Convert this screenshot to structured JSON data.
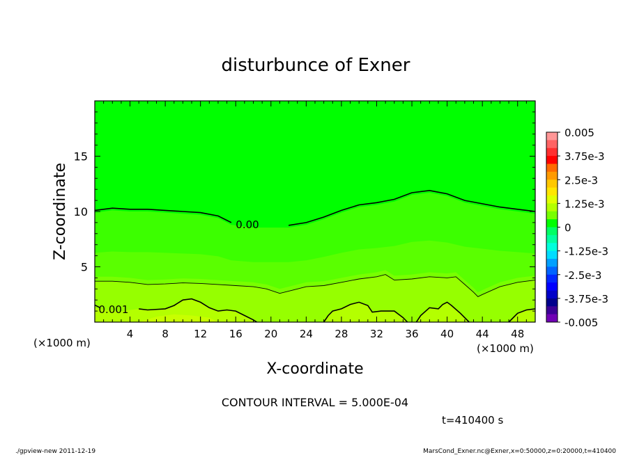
{
  "chart_data": {
    "type": "heatmap",
    "title": "disturbunce of Exner",
    "xlabel": "X-coordinate",
    "ylabel": "Z-coordinate",
    "x_unit": "(×1000 m)",
    "x_unit_right": "(×1000 m)",
    "xlim": [
      0,
      50
    ],
    "ylim": [
      0,
      20
    ],
    "x_ticks": [
      "4",
      "8",
      "12",
      "16",
      "20",
      "24",
      "28",
      "32",
      "36",
      "40",
      "44",
      "48"
    ],
    "x_tick_values": [
      4,
      8,
      12,
      16,
      20,
      24,
      28,
      32,
      36,
      40,
      44,
      48
    ],
    "y_ticks": [
      "5",
      "10",
      "15"
    ],
    "y_tick_values": [
      5,
      10,
      15
    ],
    "contour_interval_text": "CONTOUR INTERVAL = 5.000E-04",
    "time_text": "t=410400 s",
    "contour_labels": [
      {
        "text": "0.00",
        "x": 17.5,
        "y": 8.8
      },
      {
        "text": "0.001",
        "x": 2.3,
        "y": 1.2
      }
    ],
    "contour_zero": [
      [
        0,
        10.1
      ],
      [
        2,
        10.3
      ],
      [
        4,
        10.2
      ],
      [
        6,
        10.2
      ],
      [
        8,
        10.1
      ],
      [
        10,
        10
      ],
      [
        12,
        9.9
      ],
      [
        14,
        9.6
      ],
      [
        15.5,
        9.0
      ],
      [
        18,
        8.75
      ],
      [
        22,
        8.75
      ],
      [
        24,
        9.0
      ],
      [
        26,
        9.5
      ],
      [
        28,
        10.1
      ],
      [
        30,
        10.6
      ],
      [
        32,
        10.8
      ],
      [
        34,
        11.1
      ],
      [
        36,
        11.7
      ],
      [
        38,
        11.9
      ],
      [
        40,
        11.6
      ],
      [
        42,
        11.0
      ],
      [
        44,
        10.7
      ],
      [
        46,
        10.4
      ],
      [
        48,
        10.2
      ],
      [
        50,
        10.0
      ]
    ],
    "contour_0005": [
      [
        0,
        3.7
      ],
      [
        2,
        3.7
      ],
      [
        4,
        3.6
      ],
      [
        6,
        3.4
      ],
      [
        8,
        3.45
      ],
      [
        10,
        3.55
      ],
      [
        12,
        3.5
      ],
      [
        14,
        3.4
      ],
      [
        16,
        3.3
      ],
      [
        18,
        3.2
      ],
      [
        19.5,
        3.0
      ],
      [
        21,
        2.6
      ],
      [
        22.5,
        2.9
      ],
      [
        24,
        3.2
      ],
      [
        26,
        3.3
      ],
      [
        28,
        3.6
      ],
      [
        30,
        3.9
      ],
      [
        32,
        4.1
      ],
      [
        33,
        4.3
      ],
      [
        34,
        3.8
      ],
      [
        36,
        3.9
      ],
      [
        38,
        4.1
      ],
      [
        40,
        4.0
      ],
      [
        41,
        4.1
      ],
      [
        42,
        3.4
      ],
      [
        43,
        2.7
      ],
      [
        43.5,
        2.3
      ],
      [
        44,
        2.5
      ],
      [
        46,
        3.2
      ],
      [
        48,
        3.6
      ],
      [
        50,
        3.8
      ]
    ],
    "contour_001_segments": [
      [
        [
          0,
          1.3
        ],
        [
          1,
          1.1
        ],
        [
          3,
          1.0
        ],
        [
          5,
          1.2
        ],
        [
          6,
          1.1
        ],
        [
          8,
          1.2
        ],
        [
          9,
          1.5
        ],
        [
          10,
          2.0
        ],
        [
          11,
          2.1
        ],
        [
          12,
          1.8
        ],
        [
          13,
          1.3
        ],
        [
          14,
          1.0
        ],
        [
          15,
          1.1
        ],
        [
          16,
          1.0
        ],
        [
          17,
          0.6
        ],
        [
          18,
          0.2
        ],
        [
          18.4,
          0
        ]
      ],
      [
        [
          26,
          0
        ],
        [
          26.5,
          0.6
        ],
        [
          27,
          1.0
        ],
        [
          28,
          1.2
        ],
        [
          29,
          1.6
        ],
        [
          30,
          1.8
        ],
        [
          31,
          1.5
        ],
        [
          31.5,
          0.9
        ],
        [
          32.5,
          1.0
        ],
        [
          34,
          1.0
        ],
        [
          35,
          0.4
        ],
        [
          35.5,
          0
        ]
      ],
      [
        [
          36.5,
          0
        ],
        [
          37,
          0.6
        ],
        [
          38,
          1.3
        ],
        [
          39,
          1.2
        ],
        [
          39.5,
          1.6
        ],
        [
          40,
          1.8
        ],
        [
          40.5,
          1.5
        ],
        [
          41.5,
          0.8
        ],
        [
          42.5,
          0
        ]
      ],
      [
        [
          47,
          0
        ],
        [
          48,
          0.8
        ],
        [
          49,
          1.1
        ],
        [
          50,
          1.2
        ]
      ]
    ],
    "contour_0015_segments": [
      [
        [
          5,
          0
        ],
        [
          7,
          0.5
        ],
        [
          9,
          0.7
        ],
        [
          11,
          0.6
        ],
        [
          13,
          0.4
        ],
        [
          14,
          0
        ]
      ]
    ],
    "colorbar_labels": [
      "0.005",
      "3.75e-3",
      "2.5e-3",
      "1.25e-3",
      "0",
      "-1.25e-3",
      "-2.5e-3",
      "-3.75e-3",
      "-0.005"
    ],
    "colorbar_colors": [
      "#ff9696",
      "#ff6464",
      "#ff3030",
      "#ff0000",
      "#ff6a00",
      "#ff9a00",
      "#ffc800",
      "#ffe600",
      "#e1ff00",
      "#b4ff00",
      "#78ff00",
      "#00ff00",
      "#00ff64",
      "#00ffa0",
      "#00ffdc",
      "#00dcff",
      "#00a0ff",
      "#0064ff",
      "#0028ff",
      "#0000ff",
      "#0000c8",
      "#00008c",
      "#3c0096",
      "#7000b4"
    ],
    "fill_colors": {
      "bg": "#00ff00",
      "low1": "#3cff00",
      "low2": "#5aff00",
      "low3": "#78ff00",
      "low4": "#96ff00",
      "low5": "#b4ff00"
    }
  },
  "footer": {
    "left": "./gpview-new   2011-12-19",
    "right": "MarsCond_Exner.nc@Exner,x=0:50000,z=0:20000,t=410400"
  }
}
